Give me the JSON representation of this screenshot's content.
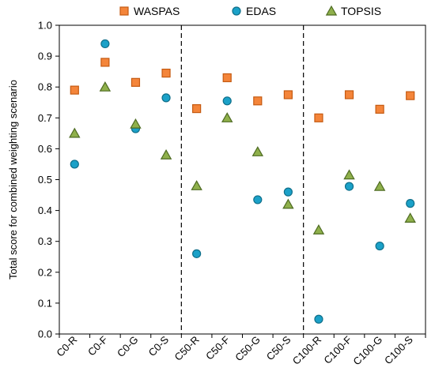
{
  "chart_data": {
    "type": "scatter",
    "ylabel": "Total score for combined weighting scenario",
    "xlabel": "",
    "ylim": [
      0.0,
      1.0
    ],
    "yticks": [
      "0.0",
      "0.1",
      "0.2",
      "0.3",
      "0.4",
      "0.5",
      "0.6",
      "0.7",
      "0.8",
      "0.9",
      "1.0"
    ],
    "categories": [
      "C0-R",
      "C0-F",
      "C0-G",
      "C0-S",
      "C50-R",
      "C50-F",
      "C50-G",
      "C50-S",
      "C100-R",
      "C100-F",
      "C100-G",
      "C100-S"
    ],
    "group_separators_after": [
      "C0-S",
      "C50-S"
    ],
    "legend_position": "top",
    "series": [
      {
        "name": "WASPAS",
        "marker": "square",
        "fill": "#f4853a",
        "stroke": "#c55a11",
        "values": [
          0.79,
          0.88,
          0.815,
          0.845,
          0.73,
          0.83,
          0.755,
          0.775,
          0.7,
          0.775,
          0.728,
          0.772
        ]
      },
      {
        "name": "EDAS",
        "marker": "circle",
        "fill": "#1ba1c8",
        "stroke": "#0f6f8a",
        "values": [
          0.55,
          0.94,
          0.665,
          0.765,
          0.26,
          0.755,
          0.435,
          0.46,
          0.048,
          0.478,
          0.285,
          0.423
        ]
      },
      {
        "name": "TOPSIS",
        "marker": "triangle",
        "fill": "#8fb04b",
        "stroke": "#4e6b22",
        "values": [
          0.65,
          0.8,
          0.68,
          0.58,
          0.48,
          0.7,
          0.59,
          0.42,
          0.337,
          0.515,
          0.478,
          0.375
        ]
      }
    ]
  }
}
